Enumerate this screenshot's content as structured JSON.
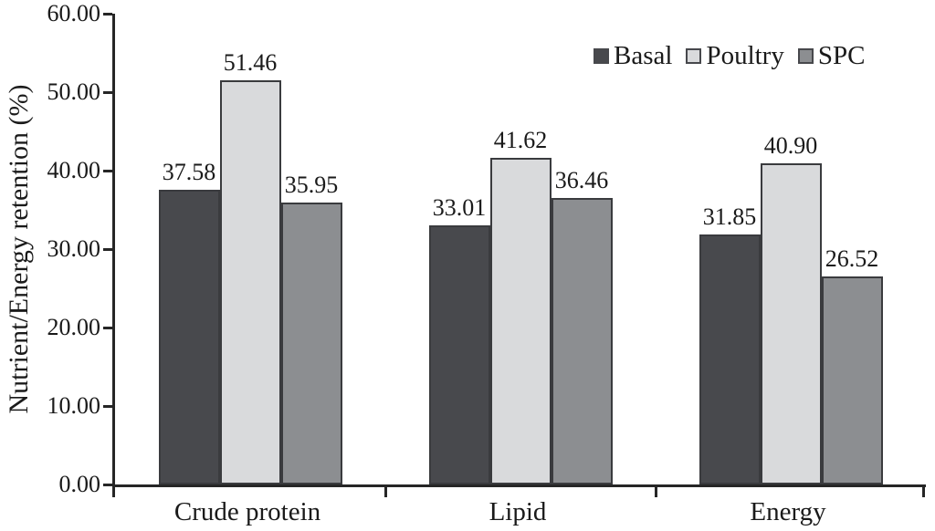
{
  "chart_data": {
    "type": "bar",
    "title": "",
    "xlabel": "",
    "ylabel": "Nutrient/Energy retention (%)",
    "ylim": [
      0,
      60
    ],
    "ytick_step": 10,
    "yticks": [
      "60.00",
      "50.00",
      "40.00",
      "30.00",
      "20.00",
      "10.00",
      "0.00"
    ],
    "categories": [
      "Crude protein",
      "Lipid",
      "Energy"
    ],
    "series": [
      {
        "name": "Basal",
        "color": "#48494d",
        "values": [
          37.58,
          33.01,
          31.85
        ],
        "labels": [
          "37.58",
          "33.01",
          "31.85"
        ]
      },
      {
        "name": "Poultry",
        "color": "#d9dadc",
        "values": [
          51.46,
          41.62,
          40.9
        ],
        "labels": [
          "51.46",
          "41.62",
          "40.90"
        ]
      },
      {
        "name": "SPC",
        "color": "#8c8e91",
        "values": [
          35.95,
          36.46,
          26.52
        ],
        "labels": [
          "35.95",
          "36.46",
          "26.52"
        ]
      }
    ],
    "legend_position": "top-right",
    "grid": false,
    "axis_color": "#262626",
    "text_color": "#1a1a1a",
    "bar_border_color": "#3a3b3e"
  }
}
